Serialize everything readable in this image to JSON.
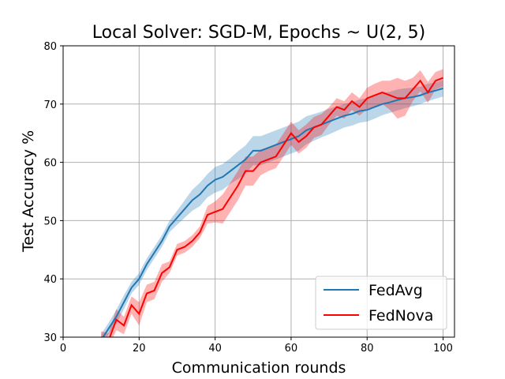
{
  "chart_data": {
    "type": "line",
    "title": "Local Solver: SGD-M, Epochs ~ U(2, 5)",
    "xlabel": "Communication rounds",
    "ylabel": "Test Accuracy %",
    "xlim": [
      0,
      103
    ],
    "ylim": [
      30,
      80
    ],
    "xticks": [
      "0",
      "20",
      "40",
      "60",
      "80",
      "100"
    ],
    "yticks": [
      "30",
      "40",
      "50",
      "60",
      "70",
      "80"
    ],
    "grid": true,
    "legend_position": "lower-right",
    "x": [
      10,
      12,
      14,
      16,
      18,
      20,
      22,
      24,
      26,
      28,
      30,
      32,
      34,
      36,
      38,
      40,
      42,
      44,
      46,
      48,
      50,
      52,
      54,
      56,
      58,
      60,
      62,
      64,
      66,
      68,
      70,
      72,
      74,
      76,
      78,
      80,
      82,
      84,
      86,
      88,
      90,
      92,
      94,
      96,
      98,
      100
    ],
    "series": [
      {
        "name": "FedAvg",
        "color": "#1f77b4",
        "values": [
          29.5,
          31.5,
          33.5,
          36,
          38.5,
          40,
          42.5,
          44.5,
          46.5,
          49,
          50.5,
          52,
          53.5,
          54.5,
          56,
          57,
          57.5,
          58.5,
          59.5,
          60.5,
          62,
          62,
          62.5,
          63,
          63.5,
          64,
          64.5,
          65.5,
          66,
          66.5,
          67,
          67.5,
          68,
          68.3,
          68.8,
          69,
          69.5,
          70,
          70.3,
          70.7,
          71,
          71.2,
          71.5,
          72,
          72.3,
          72.7
        ],
        "band": [
          1,
          1,
          1.2,
          1.2,
          1,
          1,
          1,
          1,
          1,
          1,
          1.2,
          1.5,
          1.8,
          2,
          2,
          2.2,
          2.2,
          2.2,
          2.4,
          2.4,
          2.5,
          2.5,
          2.5,
          2.5,
          2.5,
          2.5,
          2.5,
          2.4,
          2.3,
          2.2,
          2.2,
          2.1,
          2,
          2,
          2,
          2,
          2,
          1.9,
          1.8,
          1.8,
          1.7,
          1.6,
          1.5,
          1.5,
          1.4,
          1.4
        ]
      },
      {
        "name": "FedNova",
        "color": "#ff0000",
        "values": [
          30,
          29.5,
          33,
          32,
          35.5,
          34,
          37.5,
          38,
          41,
          42,
          45,
          45.5,
          46.5,
          48,
          51,
          51.5,
          52,
          54,
          56,
          58.5,
          58.5,
          60,
          60.5,
          61,
          63,
          65,
          63.5,
          64.5,
          66,
          66.5,
          68,
          69.5,
          69,
          70.5,
          69.5,
          71,
          71.5,
          72,
          71.5,
          71,
          71,
          72.5,
          74,
          72,
          74,
          74.5
        ],
        "band": [
          1,
          1.2,
          1.8,
          1.5,
          1.5,
          2,
          1.5,
          1.5,
          1.5,
          1,
          1,
          1,
          1,
          1,
          1.5,
          1.8,
          2.5,
          2.5,
          2.5,
          2.5,
          2.5,
          2.2,
          2,
          2,
          2,
          2,
          2,
          2,
          1.8,
          1.8,
          1.5,
          1.5,
          1.5,
          1.5,
          1.5,
          1.8,
          2,
          2,
          2.5,
          3.5,
          3,
          2,
          1.8,
          1.8,
          1.5,
          1.5
        ]
      }
    ]
  }
}
